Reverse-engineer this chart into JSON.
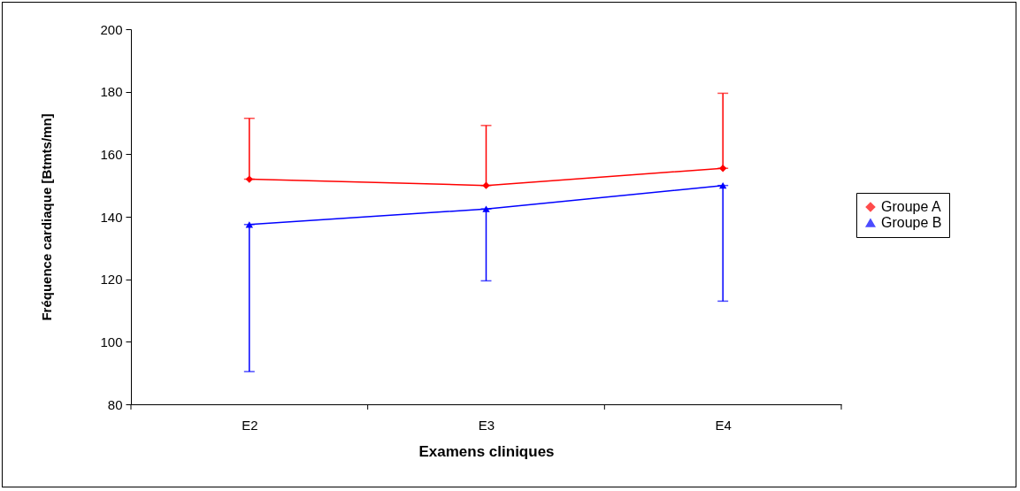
{
  "chart_data": {
    "type": "line",
    "xlabel": "Examens cliniques",
    "ylabel": "Fréquence cardiaque [Btmts/mn]",
    "categories": [
      "E2",
      "E3",
      "E4"
    ],
    "series": [
      {
        "name": "Groupe A",
        "color": "#ff0000",
        "marker": "diamond",
        "values": [
          152,
          150,
          155.5
        ],
        "errors": [
          [
            152,
            171.5
          ],
          [
            150,
            169.2
          ],
          [
            155.5,
            179.5
          ]
        ]
      },
      {
        "name": "Groupe B",
        "color": "#0000ff",
        "marker": "triangle",
        "values": [
          137.5,
          142.5,
          150
        ],
        "errors": [
          [
            90.5,
            137.5
          ],
          [
            119.5,
            142.5
          ],
          [
            113,
            150
          ]
        ]
      }
    ],
    "ylim": [
      80,
      200
    ],
    "yticks": [
      80,
      100,
      120,
      140,
      160,
      180,
      200
    ],
    "grid": false,
    "legend": "right"
  }
}
